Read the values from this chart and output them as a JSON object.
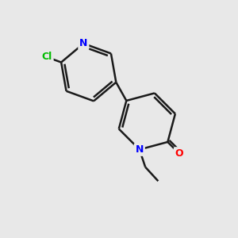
{
  "background_color": "#e8e8e8",
  "bond_color": "#1a1a1a",
  "bond_width": 1.8,
  "atom_colors": {
    "N": "#0000ff",
    "O": "#ff0000",
    "Cl": "#00bb00",
    "C": "#1a1a1a"
  },
  "figsize": [
    3.0,
    3.0
  ],
  "dpi": 100
}
